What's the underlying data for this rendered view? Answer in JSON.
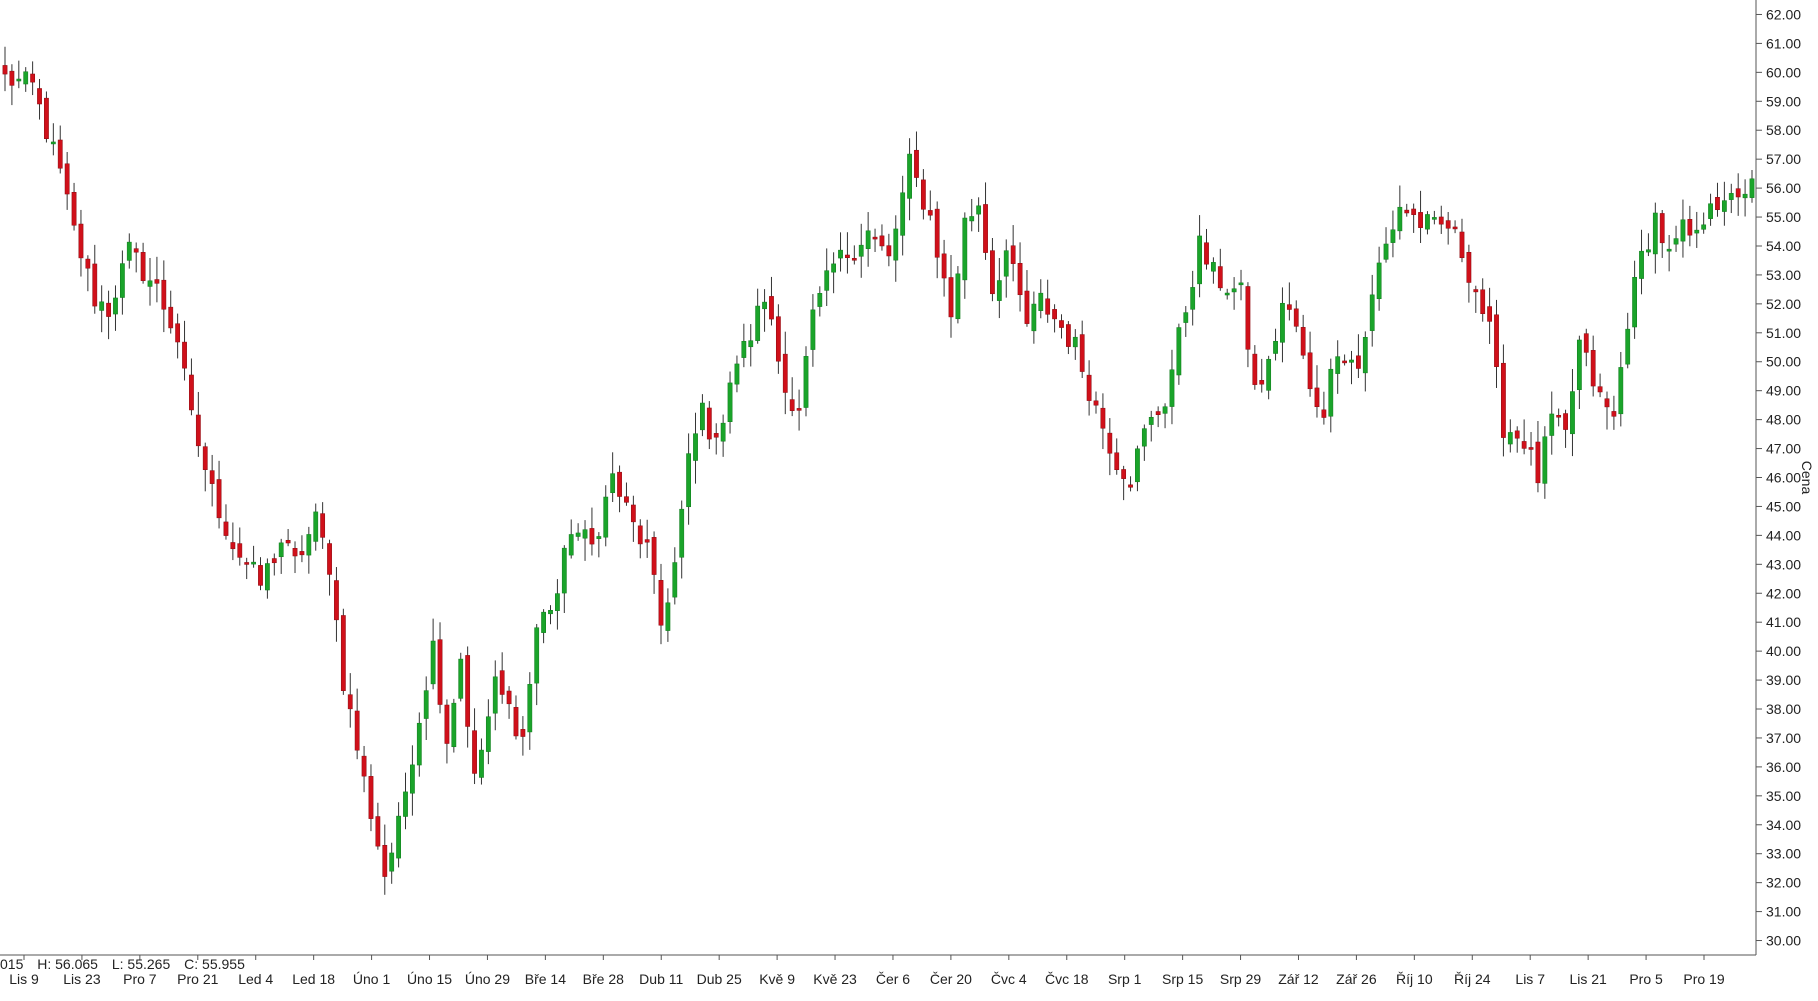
{
  "chart_data": {
    "type": "candlestick",
    "ylabel": "Cena",
    "ylim": [
      29.5,
      62.5
    ],
    "y_ticks": [
      "30.00",
      "31.00",
      "32.00",
      "33.00",
      "34.00",
      "35.00",
      "36.00",
      "37.00",
      "38.00",
      "39.00",
      "40.00",
      "41.00",
      "42.00",
      "43.00",
      "44.00",
      "45.00",
      "46.00",
      "47.00",
      "48.00",
      "49.00",
      "50.00",
      "51.00",
      "52.00",
      "53.00",
      "54.00",
      "55.00",
      "56.00",
      "57.00",
      "58.00",
      "59.00",
      "60.00",
      "61.00",
      "62.00"
    ],
    "x_ticks": [
      "Lis 9",
      "Lis 23",
      "Pro 7",
      "Pro 21",
      "Led 4",
      "Led 18",
      "Úno 1",
      "Úno 15",
      "Úno 29",
      "Bře 14",
      "Bře 28",
      "Dub 11",
      "Dub 25",
      "Kvě 9",
      "Kvě 23",
      "Čer 6",
      "Čer 20",
      "Čvc 4",
      "Čvc 18",
      "Srp 1",
      "Srp 15",
      "Srp 29",
      "Zář 12",
      "Zář 26",
      "Říj 10",
      "Říj 24",
      "Lis 7",
      "Lis 21",
      "Pro 5",
      "Pro 19"
    ],
    "colors": {
      "up": "#1aa42a",
      "down": "#d0101a",
      "wick": "#333333",
      "grid_axis": "#555555"
    },
    "ohlc_summary": {
      "prefix": "015",
      "high_label": "H: 56.065",
      "low_label": "L: 55.265",
      "close_label": "C: 55.955"
    },
    "anchors": [
      [
        0,
        59.8
      ],
      [
        4,
        59.5
      ],
      [
        8,
        56.5
      ],
      [
        10,
        54.5
      ],
      [
        13,
        52.2
      ],
      [
        15,
        51.8
      ],
      [
        18,
        53.8
      ],
      [
        22,
        52.5
      ],
      [
        25,
        50.8
      ],
      [
        27,
        48.0
      ],
      [
        30,
        45.5
      ],
      [
        33,
        43.7
      ],
      [
        37,
        42.3
      ],
      [
        40,
        43.8
      ],
      [
        42,
        43.0
      ],
      [
        45,
        44.5
      ],
      [
        47,
        43.0
      ],
      [
        49,
        39.0
      ],
      [
        52,
        35.5
      ],
      [
        55,
        32.3
      ],
      [
        57,
        33.9
      ],
      [
        59,
        36.5
      ],
      [
        62,
        40.2
      ],
      [
        64,
        37.0
      ],
      [
        66,
        39.8
      ],
      [
        68,
        35.5
      ],
      [
        71,
        38.8
      ],
      [
        73,
        38.0
      ],
      [
        75,
        37.0
      ],
      [
        77,
        40.8
      ],
      [
        80,
        42.0
      ],
      [
        82,
        44.3
      ],
      [
        85,
        43.6
      ],
      [
        88,
        46.0
      ],
      [
        91,
        44.3
      ],
      [
        93,
        43.5
      ],
      [
        95,
        40.9
      ],
      [
        97,
        43.0
      ],
      [
        99,
        46.5
      ],
      [
        101,
        48.4
      ],
      [
        103,
        47.0
      ],
      [
        105,
        49.5
      ],
      [
        108,
        50.9
      ],
      [
        110,
        52.3
      ],
      [
        113,
        49.0
      ],
      [
        115,
        48.5
      ],
      [
        117,
        51.5
      ],
      [
        120,
        53.3
      ],
      [
        123,
        54.0
      ],
      [
        125,
        54.5
      ],
      [
        128,
        53.5
      ],
      [
        131,
        56.8
      ],
      [
        134,
        55.0
      ],
      [
        137,
        51.6
      ],
      [
        139,
        54.8
      ],
      [
        141,
        55.5
      ],
      [
        143,
        52.5
      ],
      [
        145,
        53.8
      ],
      [
        148,
        51.3
      ],
      [
        150,
        52.1
      ],
      [
        153,
        51.2
      ],
      [
        155,
        50.5
      ],
      [
        158,
        48.4
      ],
      [
        161,
        46.6
      ],
      [
        163,
        46.0
      ],
      [
        165,
        47.5
      ],
      [
        168,
        48.7
      ],
      [
        170,
        50.8
      ],
      [
        173,
        54.0
      ],
      [
        175,
        53.0
      ],
      [
        177,
        52.6
      ],
      [
        179,
        52.3
      ],
      [
        181,
        49.0
      ],
      [
        183,
        49.8
      ],
      [
        185,
        52.0
      ],
      [
        187,
        51.2
      ],
      [
        189,
        48.9
      ],
      [
        191,
        48.4
      ],
      [
        193,
        50.6
      ],
      [
        196,
        49.8
      ],
      [
        199,
        53.3
      ],
      [
        202,
        55.4
      ],
      [
        205,
        54.8
      ],
      [
        207,
        54.6
      ],
      [
        209,
        54.7
      ],
      [
        211,
        53.8
      ],
      [
        213,
        52.5
      ],
      [
        215,
        51.0
      ],
      [
        217,
        47.8
      ],
      [
        220,
        47.3
      ],
      [
        222,
        46.0
      ],
      [
        224,
        48.0
      ],
      [
        226,
        47.4
      ],
      [
        228,
        50.6
      ],
      [
        231,
        48.7
      ],
      [
        233,
        48.0
      ],
      [
        235,
        51.5
      ],
      [
        237,
        53.6
      ],
      [
        239,
        55.0
      ],
      [
        241,
        53.6
      ],
      [
        243,
        54.5
      ],
      [
        245,
        54.2
      ],
      [
        247,
        55.8
      ],
      [
        249,
        55.2
      ],
      [
        251,
        55.9
      ],
      [
        253,
        56.0
      ]
    ]
  }
}
